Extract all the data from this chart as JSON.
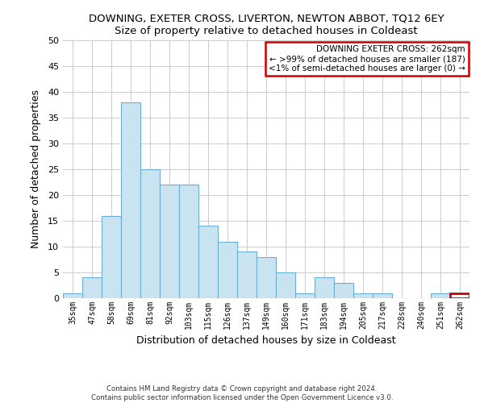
{
  "title": "DOWNING, EXETER CROSS, LIVERTON, NEWTON ABBOT, TQ12 6EY",
  "subtitle": "Size of property relative to detached houses in Coldeast",
  "xlabel": "Distribution of detached houses by size in Coldeast",
  "ylabel": "Number of detached properties",
  "bar_color": "#c9e4f0",
  "bar_edge_color": "#6aaed6",
  "categories": [
    "35sqm",
    "47sqm",
    "58sqm",
    "69sqm",
    "81sqm",
    "92sqm",
    "103sqm",
    "115sqm",
    "126sqm",
    "137sqm",
    "149sqm",
    "160sqm",
    "171sqm",
    "183sqm",
    "194sqm",
    "205sqm",
    "217sqm",
    "228sqm",
    "240sqm",
    "251sqm",
    "262sqm"
  ],
  "values": [
    1,
    4,
    16,
    38,
    25,
    22,
    22,
    14,
    11,
    9,
    8,
    5,
    1,
    4,
    3,
    1,
    1,
    0,
    0,
    1,
    1
  ],
  "ylim": [
    0,
    50
  ],
  "yticks": [
    0,
    5,
    10,
    15,
    20,
    25,
    30,
    35,
    40,
    45,
    50
  ],
  "annotation_box_title": "DOWNING EXETER CROSS: 262sqm",
  "annotation_line1": "← >99% of detached houses are smaller (187)",
  "annotation_line2": "<1% of semi-detached houses are larger (0) →",
  "annotation_box_color": "#ffffff",
  "annotation_box_edge_color": "#cc0000",
  "highlight_bar_index": 20,
  "highlight_bar_color": "#ffffff",
  "highlight_bar_edge_color": "#cc0000",
  "footer_line1": "Contains HM Land Registry data © Crown copyright and database right 2024.",
  "footer_line2": "Contains public sector information licensed under the Open Government Licence v3.0.",
  "background_color": "#ffffff",
  "grid_color": "#cccccc"
}
